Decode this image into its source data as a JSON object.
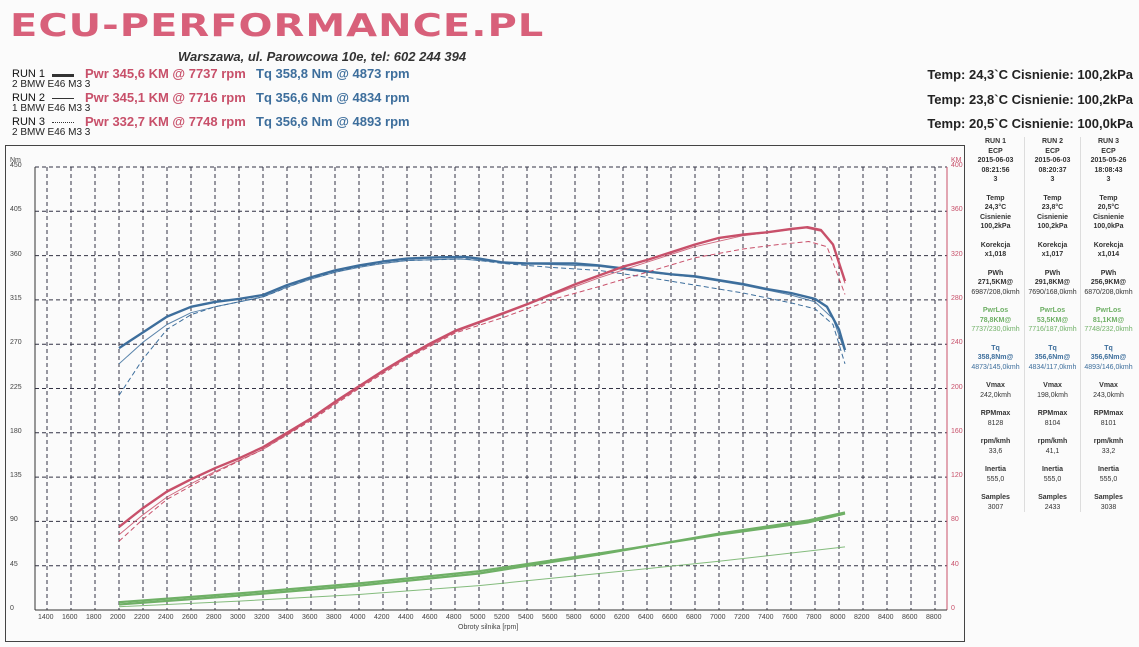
{
  "header": {
    "logo": "ECU-PERFORMANCE.PL",
    "address": "Warszawa, ul. Parowcowa 10e, tel: 602 244 394"
  },
  "runs": [
    {
      "label": "RUN 1",
      "vehicle": "2 BMW E46 M3 3",
      "pwr": "Pwr  345,6 KM @ 7737 rpm",
      "tq": "Tq 358,8 Nm @ 4873 rpm",
      "cond": "Temp: 24,3`C   Cisnienie: 100,2kPa",
      "line_style": "solid-thick"
    },
    {
      "label": "RUN 2",
      "vehicle": "1 BMW E46 M3 3",
      "pwr": "Pwr  345,1 KM @ 7716 rpm",
      "tq": "Tq 356,6 Nm @ 4834 rpm",
      "cond": "Temp: 23,8`C   Cisnienie: 100,2kPa",
      "line_style": "solid-thin"
    },
    {
      "label": "RUN 3",
      "vehicle": "2 BMW E46 M3 3",
      "pwr": "Pwr  332,7 KM @ 7748 rpm",
      "tq": "Tq 356,6 Nm @ 4893 rpm",
      "cond": "Temp: 20,5`C   Cisnienie: 100,0kPa",
      "line_style": "dotted"
    }
  ],
  "table": [
    {
      "run": "RUN 1",
      "ecp": "ECP",
      "date": "2015-06-03",
      "time": "08:21:56",
      "n": "3",
      "temp_l": "Temp",
      "temp": "24,3°C",
      "cis_l": "Cisnienie",
      "cis": "100,2kPa",
      "kor_l": "Korekcja",
      "kor": "x1,018",
      "pwh_l": "PWh",
      "pwh": "271,5KM@",
      "pwh2": "6987/208,0kmh",
      "los_l": "PwrLos",
      "los": "78,8KM@",
      "los2": "7737/230,0kmh",
      "tq_l": "Tq",
      "tq": "358,8Nm@",
      "tq2": "4873/145,0kmh",
      "vmax_l": "Vmax",
      "vmax": "242,0kmh",
      "rpm_l": "RPMmax",
      "rpm": "8128",
      "rk_l": "rpm/kmh",
      "rk": "33,6",
      "in_l": "Inertia",
      "in": "555,0",
      "s_l": "Samples",
      "s": "3007"
    },
    {
      "run": "RUN 2",
      "ecp": "ECP",
      "date": "2015-06-03",
      "time": "08:20:37",
      "n": "3",
      "temp_l": "Temp",
      "temp": "23,8°C",
      "cis_l": "Cisnienie",
      "cis": "100,2kPa",
      "kor_l": "Korekcja",
      "kor": "x1,017",
      "pwh_l": "PWh",
      "pwh": "291,8KM@",
      "pwh2": "7690/168,0kmh",
      "los_l": "PwrLos",
      "los": "53,5KM@",
      "los2": "7716/187,0kmh",
      "tq_l": "Tq",
      "tq": "356,6Nm@",
      "tq2": "4834/117,0kmh",
      "vmax_l": "Vmax",
      "vmax": "198,0kmh",
      "rpm_l": "RPMmax",
      "rpm": "8104",
      "rk_l": "rpm/kmh",
      "rk": "41,1",
      "in_l": "Inertia",
      "in": "555,0",
      "s_l": "Samples",
      "s": "2433"
    },
    {
      "run": "RUN 3",
      "ecp": "ECP",
      "date": "2015-05-26",
      "time": "18:08:43",
      "n": "3",
      "temp_l": "Temp",
      "temp": "20,5°C",
      "cis_l": "Cisnienie",
      "cis": "100,0kPa",
      "kor_l": "Korekcja",
      "kor": "x1,014",
      "pwh_l": "PWh",
      "pwh": "256,9KM@",
      "pwh2": "6870/208,0kmh",
      "los_l": "PwrLos",
      "los": "81,1KM@",
      "los2": "7748/232,0kmh",
      "tq_l": "Tq",
      "tq": "356,6Nm@",
      "tq2": "4893/146,0kmh",
      "vmax_l": "Vmax",
      "vmax": "243,0kmh",
      "rpm_l": "RPMmax",
      "rpm": "8101",
      "rk_l": "rpm/kmh",
      "rk": "33,2",
      "in_l": "Inertia",
      "in": "555,0",
      "s_l": "Samples",
      "s": "3038"
    }
  ],
  "chart_data": {
    "type": "line",
    "xlabel": "Obroty silnika [rpm]",
    "ylabel_left": "Nm",
    "ylabel_right": "KM",
    "xlim": [
      1300,
      8900
    ],
    "ylim_left": [
      0,
      450
    ],
    "ylim_right": [
      0,
      400
    ],
    "xticks": [
      1400,
      1600,
      1800,
      2000,
      2200,
      2400,
      2600,
      2800,
      3000,
      3200,
      3400,
      3600,
      3800,
      4000,
      4200,
      4400,
      4600,
      4800,
      5000,
      5200,
      5400,
      5600,
      5800,
      6000,
      6200,
      6400,
      6600,
      6800,
      7000,
      7200,
      7400,
      7600,
      7800,
      8000,
      8200,
      8400,
      8600,
      8800
    ],
    "yticks_left": [
      0,
      45,
      90,
      135,
      180,
      225,
      270,
      315,
      360,
      405,
      450
    ],
    "yticks_right": [
      0,
      40,
      80,
      120,
      160,
      200,
      240,
      280,
      320,
      360,
      400
    ],
    "grid": true,
    "colors": {
      "power": "#c8506a",
      "torque": "#3d6e9c",
      "loss": "#6fb066"
    },
    "series": [
      {
        "name": "RUN 1 Torque",
        "axis": "left",
        "kind": "torque",
        "style": "thick",
        "points": [
          [
            2000,
            266
          ],
          [
            2200,
            282
          ],
          [
            2400,
            298
          ],
          [
            2600,
            308
          ],
          [
            2800,
            313
          ],
          [
            3000,
            316
          ],
          [
            3200,
            320
          ],
          [
            3400,
            330
          ],
          [
            3600,
            338
          ],
          [
            3800,
            345
          ],
          [
            4000,
            350
          ],
          [
            4200,
            354
          ],
          [
            4400,
            357
          ],
          [
            4600,
            358
          ],
          [
            4873,
            358.8
          ],
          [
            5000,
            357
          ],
          [
            5200,
            353
          ],
          [
            5400,
            352
          ],
          [
            5600,
            352
          ],
          [
            5800,
            352
          ],
          [
            6000,
            350
          ],
          [
            6200,
            347
          ],
          [
            6400,
            344
          ],
          [
            6600,
            341
          ],
          [
            6800,
            339
          ],
          [
            7000,
            335
          ],
          [
            7200,
            331
          ],
          [
            7400,
            326
          ],
          [
            7600,
            322
          ],
          [
            7800,
            316
          ],
          [
            7900,
            308
          ],
          [
            8000,
            285
          ],
          [
            8050,
            264
          ]
        ]
      },
      {
        "name": "RUN 2 Torque",
        "axis": "left",
        "kind": "torque",
        "style": "thin",
        "points": [
          [
            2000,
            250
          ],
          [
            2200,
            272
          ],
          [
            2400,
            290
          ],
          [
            2600,
            302
          ],
          [
            2800,
            308
          ],
          [
            3000,
            313
          ],
          [
            3200,
            318
          ],
          [
            3400,
            328
          ],
          [
            3600,
            336
          ],
          [
            3800,
            343
          ],
          [
            4000,
            348
          ],
          [
            4200,
            352
          ],
          [
            4400,
            355
          ],
          [
            4834,
            356.6
          ],
          [
            5200,
            353
          ],
          [
            5600,
            351
          ],
          [
            6000,
            349
          ],
          [
            6400,
            343
          ],
          [
            6800,
            338
          ],
          [
            7200,
            330
          ],
          [
            7600,
            320
          ],
          [
            7800,
            313
          ],
          [
            7950,
            296
          ],
          [
            8050,
            262
          ]
        ]
      },
      {
        "name": "RUN 3 Torque",
        "axis": "left",
        "kind": "torque",
        "style": "dashed",
        "points": [
          [
            2000,
            218
          ],
          [
            2200,
            255
          ],
          [
            2400,
            285
          ],
          [
            2600,
            300
          ],
          [
            2800,
            308
          ],
          [
            3200,
            318
          ],
          [
            3600,
            337
          ],
          [
            4000,
            349
          ],
          [
            4400,
            355
          ],
          [
            4893,
            356.6
          ],
          [
            5200,
            352
          ],
          [
            5600,
            348
          ],
          [
            6000,
            345
          ],
          [
            6400,
            338
          ],
          [
            6800,
            330
          ],
          [
            7200,
            322
          ],
          [
            7600,
            312
          ],
          [
            7800,
            306
          ],
          [
            7950,
            290
          ],
          [
            8050,
            250
          ]
        ]
      },
      {
        "name": "RUN 1 Power",
        "axis": "right",
        "kind": "power",
        "style": "thick",
        "points": [
          [
            2000,
            75
          ],
          [
            2200,
            92
          ],
          [
            2400,
            107
          ],
          [
            2600,
            118
          ],
          [
            2800,
            128
          ],
          [
            3000,
            137
          ],
          [
            3200,
            147
          ],
          [
            3400,
            160
          ],
          [
            3600,
            173
          ],
          [
            3800,
            188
          ],
          [
            4000,
            202
          ],
          [
            4200,
            216
          ],
          [
            4400,
            229
          ],
          [
            4600,
            241
          ],
          [
            4800,
            252
          ],
          [
            5000,
            260
          ],
          [
            5200,
            268
          ],
          [
            5400,
            276
          ],
          [
            5600,
            285
          ],
          [
            5800,
            294
          ],
          [
            6000,
            302
          ],
          [
            6200,
            310
          ],
          [
            6400,
            316
          ],
          [
            6600,
            323
          ],
          [
            6800,
            330
          ],
          [
            7000,
            336
          ],
          [
            7200,
            339
          ],
          [
            7400,
            341
          ],
          [
            7600,
            344
          ],
          [
            7737,
            345.6
          ],
          [
            7850,
            343
          ],
          [
            7950,
            330
          ],
          [
            8050,
            297
          ]
        ]
      },
      {
        "name": "RUN 2 Power",
        "axis": "right",
        "kind": "power",
        "style": "thin",
        "points": [
          [
            2000,
            68
          ],
          [
            2200,
            86
          ],
          [
            2400,
            102
          ],
          [
            2600,
            114
          ],
          [
            2800,
            125
          ],
          [
            3200,
            145
          ],
          [
            3600,
            172
          ],
          [
            4000,
            201
          ],
          [
            4400,
            228
          ],
          [
            4800,
            251
          ],
          [
            5200,
            267
          ],
          [
            5600,
            284
          ],
          [
            6000,
            300
          ],
          [
            6400,
            314
          ],
          [
            6800,
            328
          ],
          [
            7200,
            338
          ],
          [
            7716,
            345.1
          ],
          [
            7850,
            342
          ],
          [
            7950,
            330
          ],
          [
            8050,
            295
          ]
        ]
      },
      {
        "name": "RUN 3 Power",
        "axis": "right",
        "kind": "power",
        "style": "dashed",
        "points": [
          [
            2000,
            62
          ],
          [
            2200,
            82
          ],
          [
            2400,
            100
          ],
          [
            2800,
            124
          ],
          [
            3200,
            145
          ],
          [
            3600,
            171
          ],
          [
            4000,
            200
          ],
          [
            4400,
            227
          ],
          [
            4800,
            250
          ],
          [
            5200,
            264
          ],
          [
            5600,
            280
          ],
          [
            6000,
            292
          ],
          [
            6400,
            305
          ],
          [
            6800,
            318
          ],
          [
            7200,
            326
          ],
          [
            7500,
            330
          ],
          [
            7748,
            332.7
          ],
          [
            7900,
            328
          ],
          [
            8050,
            285
          ]
        ]
      },
      {
        "name": "RUN 1 Loss",
        "axis": "right",
        "kind": "loss",
        "style": "thick",
        "points": [
          [
            2000,
            7
          ],
          [
            3000,
            15
          ],
          [
            4000,
            24
          ],
          [
            5000,
            35
          ],
          [
            6000,
            51
          ],
          [
            7000,
            68
          ],
          [
            7737,
            79
          ],
          [
            8050,
            87
          ]
        ]
      },
      {
        "name": "RUN 2 Loss",
        "axis": "right",
        "kind": "loss",
        "style": "thin",
        "points": [
          [
            2000,
            3
          ],
          [
            3000,
            8
          ],
          [
            4000,
            14
          ],
          [
            5000,
            22
          ],
          [
            6000,
            33
          ],
          [
            7000,
            44
          ],
          [
            8050,
            57
          ]
        ]
      },
      {
        "name": "RUN 3 Loss",
        "axis": "right",
        "kind": "loss",
        "style": "thick",
        "points": [
          [
            2000,
            5
          ],
          [
            3000,
            13
          ],
          [
            4000,
            22
          ],
          [
            5000,
            33
          ],
          [
            6000,
            50
          ],
          [
            7000,
            69
          ],
          [
            7748,
            81
          ],
          [
            8050,
            88
          ]
        ]
      }
    ]
  }
}
